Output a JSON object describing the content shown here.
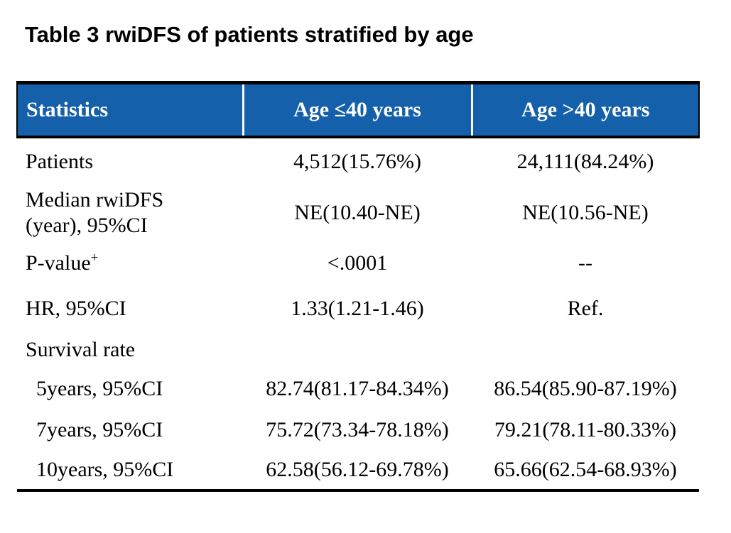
{
  "title": "Table 3 rwiDFS of patients stratified by age",
  "table": {
    "header": {
      "col1": "Statistics",
      "col2": "Age ≤40 years",
      "col3": "Age >40 years"
    },
    "rows": [
      {
        "label": "Patients",
        "col2": "4,512(15.76%)",
        "col3": "24,111(84.24%)"
      },
      {
        "label": "Median rwiDFS\n(year), 95%CI",
        "col2": "NE(10.40-NE)",
        "col3": "NE(10.56-NE)"
      },
      {
        "label": "P-value",
        "label_sup": "+",
        "col2": "<.0001",
        "col3": "--"
      },
      {
        "label": "HR, 95%CI",
        "col2": "1.33(1.21-1.46)",
        "col3": "Ref."
      },
      {
        "label": "Survival rate",
        "col2": "",
        "col3": ""
      },
      {
        "label": "5years, 95%CI",
        "col2": "82.74(81.17-84.34%)",
        "col3": "86.54(85.90-87.19%)"
      },
      {
        "label": "7years, 95%CI",
        "col2": "75.72(73.34-78.18%)",
        "col3": "79.21(78.11-80.33%)"
      },
      {
        "label": "10years, 95%CI",
        "col2": "62.58(56.12-69.78%)",
        "col3": "65.66(62.54-68.93%)"
      }
    ]
  },
  "colors": {
    "header_bg": "#1560AA",
    "header_text": "#FFFFFF",
    "body_text": "#000000",
    "border": "#000000",
    "header_divider": "#FFFFFF"
  }
}
